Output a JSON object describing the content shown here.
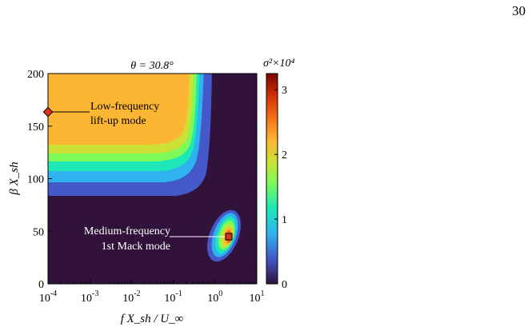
{
  "page_number": "30",
  "chart_data": {
    "type": "heatmap",
    "title": "θ = 30.8°",
    "xlabel": "f X_sh / U_∞",
    "ylabel": "β X_sh",
    "x_scale": "log",
    "xlim": [
      0.0001,
      10
    ],
    "ylim": [
      0,
      200
    ],
    "x_ticks": [
      0.0001,
      0.001,
      0.01,
      0.1,
      1,
      10
    ],
    "x_tick_labels": [
      "10",
      "10",
      "10",
      "10",
      "10",
      "10"
    ],
    "x_tick_exponents": [
      "-4",
      "-3",
      "-2",
      "-1",
      "0",
      "1"
    ],
    "y_ticks": [
      0,
      50,
      100,
      150,
      200
    ],
    "y_tick_labels": [
      "0",
      "50",
      "100",
      "150",
      "200"
    ],
    "colorbar": {
      "label": "σ²×10⁴",
      "range": [
        0,
        3.25
      ],
      "ticks": [
        0,
        1,
        2,
        3
      ],
      "tick_labels": [
        "0",
        "1",
        "2",
        "3"
      ],
      "colormap": "turbo"
    },
    "regions": [
      {
        "name": "low-frequency lobe",
        "x_range": [
          0.0001,
          0.2
        ],
        "y_range": [
          82,
          200
        ],
        "peak_value": 2.4
      },
      {
        "name": "medium-frequency lobe",
        "x_range": [
          0.9,
          3.2
        ],
        "y_range": [
          22,
          76
        ],
        "peak_value": 3.2,
        "peak_x": 2,
        "peak_y": 45
      }
    ],
    "markers": [
      {
        "shape": "diamond",
        "x": 0.0001,
        "y": 163,
        "color": "#d9351c"
      },
      {
        "shape": "square",
        "x": 2,
        "y": 45,
        "color": "#d9351c"
      }
    ],
    "annotations": [
      {
        "lines": [
          "Low-frequency",
          "lift-up mode"
        ]
      },
      {
        "lines": [
          "Medium-frequency",
          "1st Mack mode"
        ]
      }
    ]
  }
}
